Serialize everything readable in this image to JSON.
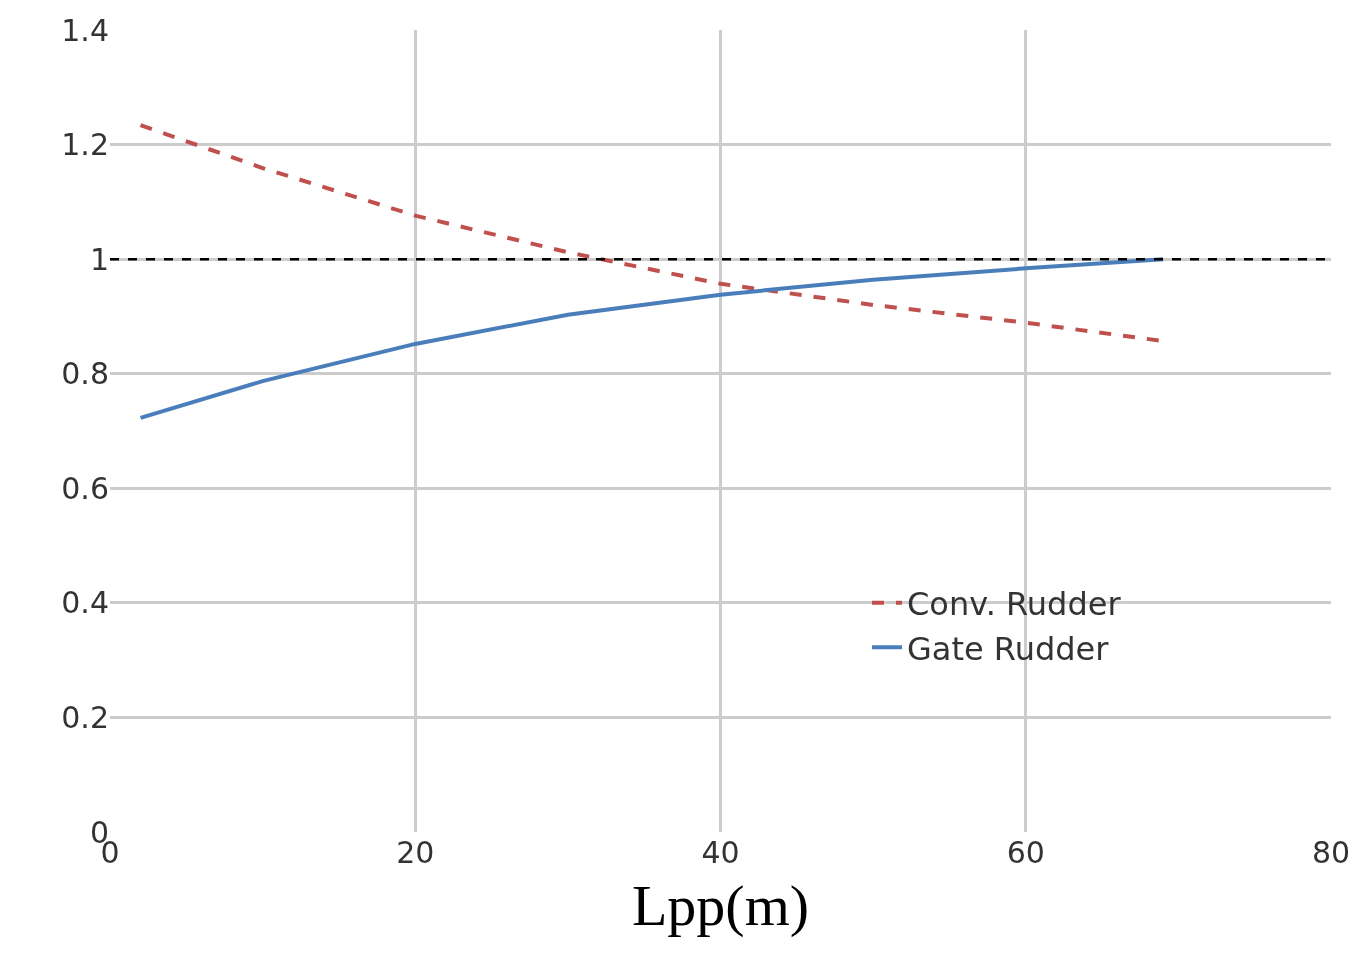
{
  "chart_data": {
    "type": "line",
    "xlabel": "Lpp(m)",
    "x": [
      2,
      10,
      20,
      30,
      40,
      50,
      60,
      69
    ],
    "series": [
      {
        "name": "Conv. Rudder",
        "color": "#c0504d",
        "line_style": "dashed",
        "values": [
          1.234,
          1.159,
          1.076,
          1.012,
          0.957,
          0.92,
          0.889,
          0.857
        ]
      },
      {
        "name": "Gate Rudder",
        "color": "#4a7ebb",
        "line_style": "solid",
        "values": [
          0.723,
          0.787,
          0.852,
          0.903,
          0.938,
          0.964,
          0.984,
          1.0
        ]
      }
    ],
    "xlim": [
      0,
      80
    ],
    "xticks": [
      0,
      20,
      40,
      60,
      80
    ],
    "ylim": [
      0,
      1.4
    ],
    "yticks": [
      0,
      0.2,
      0.4,
      0.6,
      0.8,
      1,
      1.2,
      1.4
    ],
    "ref_lines": [
      {
        "axis": "y",
        "value": 1,
        "color": "#000000",
        "line_style": "dashed"
      }
    ],
    "grid": true,
    "legend": "bottom right",
    "marker": "none"
  }
}
